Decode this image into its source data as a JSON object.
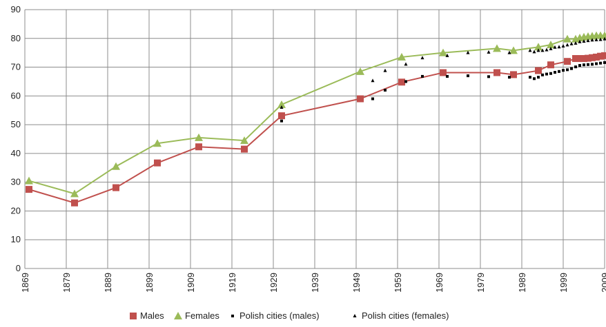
{
  "chart_data": {
    "type": "line",
    "xlim": [
      1869,
      2009
    ],
    "xticks": [
      1869,
      1879,
      1889,
      1899,
      1909,
      1919,
      1929,
      1939,
      1949,
      1959,
      1969,
      1979,
      1989,
      1999,
      2009
    ],
    "ylim": [
      0,
      90
    ],
    "yticks": [
      0,
      10,
      20,
      30,
      40,
      50,
      60,
      70,
      80,
      90
    ],
    "grid": true,
    "legend": "bottom",
    "series": [
      {
        "name": "Males",
        "color": "#c0504d",
        "marker": "square",
        "line": true,
        "x": [
          1870,
          1881,
          1891,
          1901,
          1911,
          1922,
          1931,
          1950,
          1960,
          1970,
          1983,
          1987,
          1993,
          1996,
          2000,
          2002,
          2003,
          2004,
          2005,
          2006,
          2007,
          2008,
          2009
        ],
        "values": [
          27.5,
          22.8,
          28.1,
          36.7,
          42.3,
          41.5,
          53.1,
          59,
          64.8,
          68.1,
          68.1,
          67.4,
          68.8,
          70.8,
          72,
          73,
          73,
          73,
          73.1,
          73.3,
          73.5,
          73.8,
          74
        ]
      },
      {
        "name": "Females",
        "color": "#9bbb59",
        "marker": "triangle",
        "line": true,
        "x": [
          1870,
          1881,
          1891,
          1901,
          1911,
          1922,
          1931,
          1950,
          1960,
          1970,
          1983,
          1987,
          1993,
          1996,
          2000,
          2002,
          2003,
          2004,
          2005,
          2006,
          2007,
          2008,
          2009
        ],
        "values": [
          30.5,
          26,
          35.5,
          43.5,
          45.5,
          44.5,
          57,
          68.5,
          73.5,
          75,
          76.5,
          75.8,
          77,
          77.8,
          79.8,
          79.8,
          80.2,
          80.5,
          80.7,
          80.8,
          81,
          81,
          81
        ]
      },
      {
        "name": "Polish cities (males)",
        "color": "#000000",
        "marker": "small-square",
        "line": false,
        "x": [
          1931,
          1953,
          1956,
          1961,
          1965,
          1971,
          1976,
          1981,
          1986,
          1991,
          1992,
          1993,
          1994,
          1995,
          1996,
          1997,
          1998,
          1999,
          2000,
          2001,
          2002,
          2003,
          2004,
          2005,
          2006,
          2007,
          2008,
          2009
        ],
        "values": [
          51.3,
          59,
          62,
          65,
          66.8,
          66.8,
          67,
          66.7,
          66.5,
          66.5,
          66,
          66.5,
          67.3,
          67.6,
          67.8,
          68.2,
          68.5,
          68.9,
          69.1,
          69.5,
          70.1,
          70.6,
          70.8,
          70.9,
          71,
          71.2,
          71.4,
          71.6
        ]
      },
      {
        "name": "Polish cities (females)",
        "color": "#000000",
        "marker": "small-triangle",
        "line": false,
        "x": [
          1931,
          1953,
          1956,
          1961,
          1965,
          1971,
          1976,
          1981,
          1986,
          1991,
          1992,
          1993,
          1994,
          1995,
          1996,
          1997,
          1998,
          1999,
          2000,
          2001,
          2002,
          2003,
          2004,
          2005,
          2006,
          2007,
          2008,
          2009
        ],
        "values": [
          56,
          65.3,
          68.8,
          71,
          73.2,
          74,
          75,
          75.2,
          75,
          75.8,
          75.3,
          75.8,
          75.8,
          76,
          76.4,
          76.9,
          77,
          77.3,
          77.7,
          78.1,
          78.3,
          78.8,
          79,
          79.2,
          79.4,
          79.5,
          79.6,
          79.8
        ]
      }
    ]
  }
}
